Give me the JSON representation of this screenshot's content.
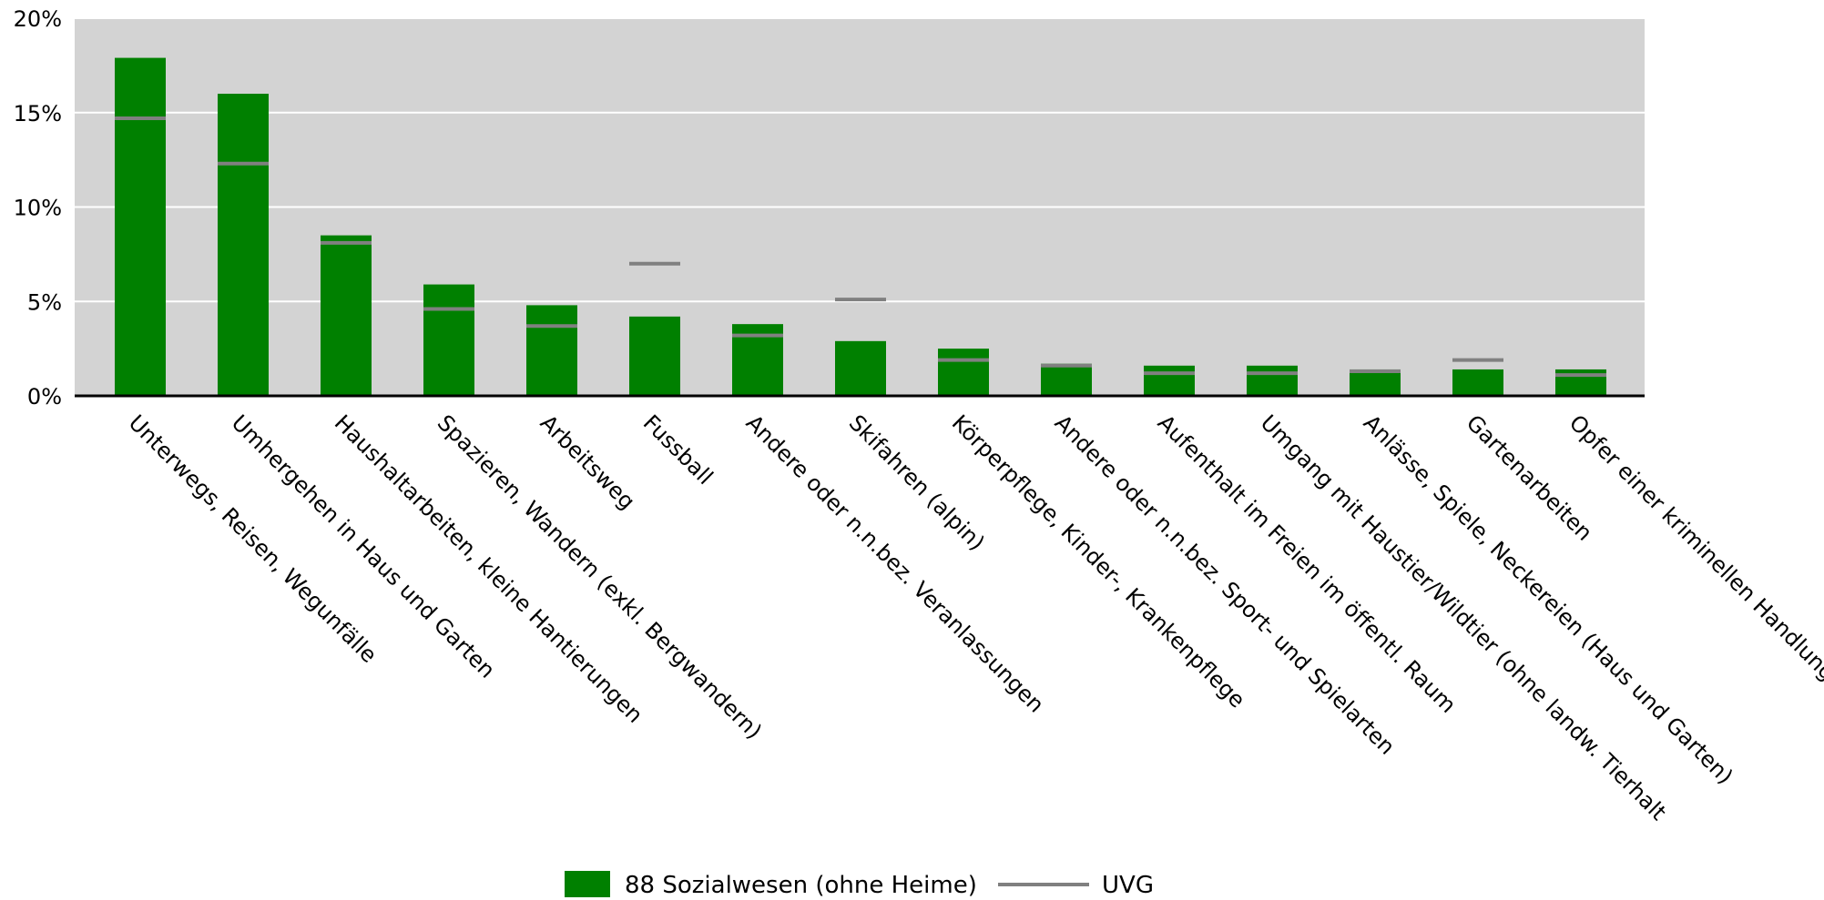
{
  "chart_data": {
    "type": "bar",
    "categories": [
      "Unterwegs, Reisen, Wegunfälle",
      "Umhergehen in Haus und Garten",
      "Haushaltarbeiten, kleine Hantierungen",
      "Spazieren, Wandern (exkl. Bergwandern)",
      "Arbeitsweg",
      "Fussball",
      "Andere oder n.n.bez. Veranlassungen",
      "Skifahren (alpin)",
      "Körperpflege, Kinder-, Krankenpflege",
      "Andere oder n.n.bez. Sport- und Spielarten",
      "Aufenthalt im Freien im öffentl. Raum",
      "Umgang mit Haustier/Wildtier (ohne landw. Tierhalt",
      "Anlässe, Spiele, Neckereien (Haus und Garten)",
      "Gartenarbeiten",
      "Opfer einer kriminellen Handlung"
    ],
    "series": [
      {
        "name": "88 Sozialwesen (ohne Heime)",
        "type": "bar",
        "color": "#008000",
        "values": [
          17.9,
          16.0,
          8.5,
          5.9,
          4.8,
          4.2,
          3.8,
          2.9,
          2.5,
          1.7,
          1.6,
          1.6,
          1.4,
          1.4,
          1.4
        ]
      },
      {
        "name": "UVG",
        "type": "marker",
        "color": "#808080",
        "values": [
          14.7,
          12.3,
          8.1,
          4.6,
          3.7,
          7.0,
          3.2,
          5.1,
          1.9,
          1.6,
          1.2,
          1.2,
          1.3,
          1.9,
          1.1
        ]
      }
    ],
    "y_ticks": [
      "0%",
      "5%",
      "10%",
      "15%",
      "20%"
    ],
    "ylim": [
      0,
      20
    ],
    "grid": true,
    "plot_background": "#d3d3d3",
    "legend_position": "bottom"
  }
}
